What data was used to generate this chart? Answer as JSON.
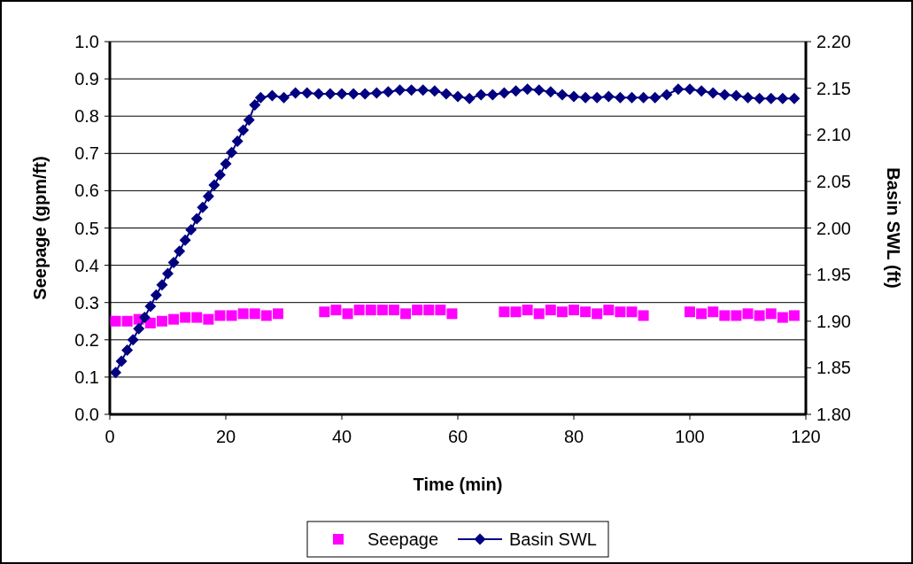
{
  "chart_data": {
    "type": "scatter",
    "xlabel": "Time (min)",
    "ylabel": "Seepage (gpm/ft)",
    "y2label": "Basin SWL (ft)",
    "xlim": [
      0,
      120
    ],
    "xticks": [
      0,
      20,
      40,
      60,
      80,
      100,
      120
    ],
    "ylim": [
      0,
      1
    ],
    "yticks": [
      {
        "value": 0,
        "label": "0.0"
      },
      {
        "value": 0.1,
        "label": "0.1"
      },
      {
        "value": 0.2,
        "label": "0.2"
      },
      {
        "value": 0.3,
        "label": "0.3"
      },
      {
        "value": 0.4,
        "label": "0.4"
      },
      {
        "value": 0.5,
        "label": "0.5"
      },
      {
        "value": 0.6,
        "label": "0.6"
      },
      {
        "value": 0.7,
        "label": "0.7"
      },
      {
        "value": 0.8,
        "label": "0.8"
      },
      {
        "value": 0.9,
        "label": "0.9"
      },
      {
        "value": 1,
        "label": "1.0"
      }
    ],
    "y2lim": [
      1.8,
      2.2
    ],
    "y2ticks": [
      {
        "value": 1.8,
        "label": "1.80"
      },
      {
        "value": 1.85,
        "label": "1.85"
      },
      {
        "value": 1.9,
        "label": "1.90"
      },
      {
        "value": 1.95,
        "label": "1.95"
      },
      {
        "value": 2,
        "label": "2.00"
      },
      {
        "value": 2.05,
        "label": "2.05"
      },
      {
        "value": 2.1,
        "label": "2.10"
      },
      {
        "value": 2.15,
        "label": "2.15"
      },
      {
        "value": 2.2,
        "label": "2.20"
      }
    ],
    "grid": "y",
    "legend": "bottom",
    "series": [
      {
        "name": "Seepage",
        "marker": "square",
        "color": "#ff00ff",
        "x": [
          1,
          3,
          5,
          7,
          9,
          11,
          13,
          15,
          17,
          19,
          21,
          23,
          25,
          27,
          29,
          37,
          39,
          41,
          43,
          45,
          47,
          49,
          51,
          53,
          55,
          57,
          59,
          68,
          70,
          72,
          74,
          76,
          78,
          80,
          82,
          84,
          86,
          88,
          90,
          92,
          100,
          102,
          104,
          106,
          108,
          110,
          112,
          114,
          116,
          118
        ],
        "values": [
          0.25,
          0.25,
          0.255,
          0.245,
          0.25,
          0.255,
          0.26,
          0.26,
          0.255,
          0.265,
          0.265,
          0.27,
          0.27,
          0.265,
          0.27,
          0.275,
          0.28,
          0.27,
          0.28,
          0.28,
          0.28,
          0.28,
          0.27,
          0.28,
          0.28,
          0.28,
          0.27,
          0.275,
          0.275,
          0.28,
          0.27,
          0.28,
          0.275,
          0.28,
          0.275,
          0.27,
          0.28,
          0.275,
          0.275,
          0.265,
          0.275,
          0.27,
          0.275,
          0.265,
          0.265,
          0.27,
          0.265,
          0.27,
          0.26,
          0.265
        ]
      },
      {
        "name": "Basin SWL",
        "type": "line",
        "marker": "diamond",
        "axis": "y2",
        "color": "#000080",
        "x": [
          1,
          2,
          3,
          4,
          5,
          6,
          7,
          8,
          9,
          10,
          11,
          12,
          13,
          14,
          15,
          16,
          17,
          18,
          19,
          20,
          21,
          22,
          23,
          24,
          25,
          26,
          28,
          30,
          32,
          34,
          36,
          38,
          40,
          42,
          44,
          46,
          48,
          50,
          52,
          54,
          56,
          58,
          60,
          62,
          64,
          66,
          68,
          70,
          72,
          74,
          76,
          78,
          80,
          82,
          84,
          86,
          88,
          90,
          92,
          94,
          96,
          98,
          100,
          102,
          104,
          106,
          108,
          110,
          112,
          114,
          116,
          118
        ],
        "values": [
          1.845,
          1.857,
          1.869,
          1.88,
          1.892,
          1.904,
          1.916,
          1.928,
          1.939,
          1.951,
          1.963,
          1.975,
          1.987,
          1.998,
          2.01,
          2.022,
          2.034,
          2.046,
          2.057,
          2.069,
          2.081,
          2.093,
          2.105,
          2.116,
          2.132,
          2.14,
          2.142,
          2.14,
          2.145,
          2.145,
          2.144,
          2.144,
          2.144,
          2.144,
          2.144,
          2.145,
          2.146,
          2.148,
          2.148,
          2.148,
          2.147,
          2.144,
          2.141,
          2.139,
          2.143,
          2.143,
          2.145,
          2.147,
          2.149,
          2.148,
          2.146,
          2.143,
          2.141,
          2.14,
          2.14,
          2.141,
          2.14,
          2.14,
          2.14,
          2.14,
          2.143,
          2.149,
          2.149,
          2.147,
          2.145,
          2.143,
          2.142,
          2.14,
          2.139,
          2.139,
          2.139,
          2.139
        ]
      }
    ]
  }
}
